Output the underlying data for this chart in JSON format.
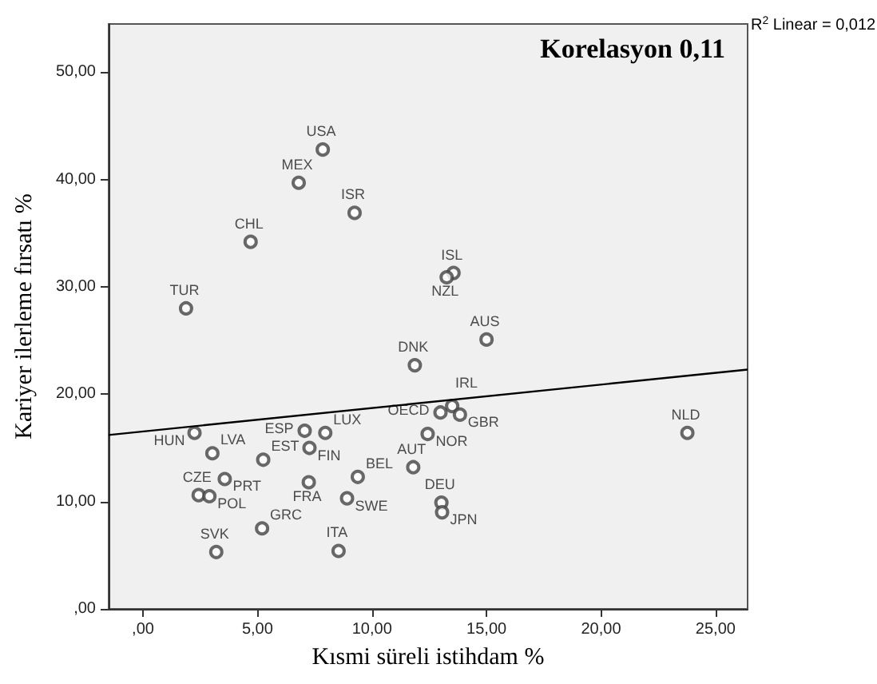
{
  "chart_data": {
    "type": "scatter",
    "xlabel": "Kısmi süreli istihdam %",
    "ylabel": "Kariyer ilerleme fırsatı %",
    "annotations": [
      "Korelasyon 0,11",
      "R$^{2}$ Linear = 0,012"
    ],
    "xlim": [
      -1.5,
      26.4
    ],
    "ylim": [
      0,
      54.5
    ],
    "xticks": [
      {
        "value": 0,
        "label": ",00"
      },
      {
        "value": 5,
        "label": "5,00"
      },
      {
        "value": 10,
        "label": "10,00"
      },
      {
        "value": 15,
        "label": "15,00"
      },
      {
        "value": 20,
        "label": "20,00"
      },
      {
        "value": 25,
        "label": "25,00"
      }
    ],
    "yticks": [
      {
        "value": 0,
        "label": ",00"
      },
      {
        "value": 10,
        "label": "10,00"
      },
      {
        "value": 20,
        "label": "20,00"
      },
      {
        "value": 30,
        "label": "30,00"
      },
      {
        "value": 40,
        "label": "40,00"
      },
      {
        "value": 50,
        "label": "50,00"
      }
    ],
    "grid": false,
    "series": [
      {
        "type": "scatter",
        "color": "#444444",
        "marker": "circle",
        "x": [
          7.85,
          6.8,
          9.24,
          4.7,
          13.56,
          13.26,
          1.88,
          15.0,
          11.87,
          2.25,
          3.03,
          5.25,
          3.57,
          2.43,
          2.9,
          5.2,
          3.2,
          7.06,
          7.96,
          7.27,
          7.24,
          9.38,
          8.91,
          8.54,
          11.8,
          12.43,
          12.99,
          13.5,
          13.84,
          13.03,
          13.06,
          23.77
        ],
        "values": [
          42.8,
          39.7,
          36.9,
          34.2,
          31.3,
          30.9,
          28.0,
          25.1,
          22.7,
          16.4,
          14.5,
          13.9,
          12.1,
          10.6,
          10.5,
          7.5,
          5.3,
          16.6,
          16.4,
          15.0,
          11.8,
          12.3,
          10.3,
          5.4,
          13.2,
          16.3,
          18.3,
          18.9,
          18.1,
          9.9,
          9.0,
          16.4
        ],
        "value_labels": [
          "USA",
          "MEX",
          "ISR",
          "CHL",
          "ISL",
          "NZL",
          "TUR",
          "AUS",
          "DNK",
          "HUN",
          "LVA",
          "EST",
          "PRT",
          "CZE",
          "POL",
          "GRC",
          "SVK",
          "ESP",
          "LUX",
          "FIN",
          "FRA",
          "BEL",
          "SWE",
          "ITA",
          "AUT",
          "NOR",
          "OECD",
          "IRL",
          "GBR",
          "DEU",
          "JPN",
          "NLD"
        ]
      },
      {
        "type": "line",
        "color": "#000000",
        "marker": "none",
        "x": [
          -1.5,
          26.4
        ],
        "values": [
          16.2,
          22.3
        ]
      }
    ]
  }
}
